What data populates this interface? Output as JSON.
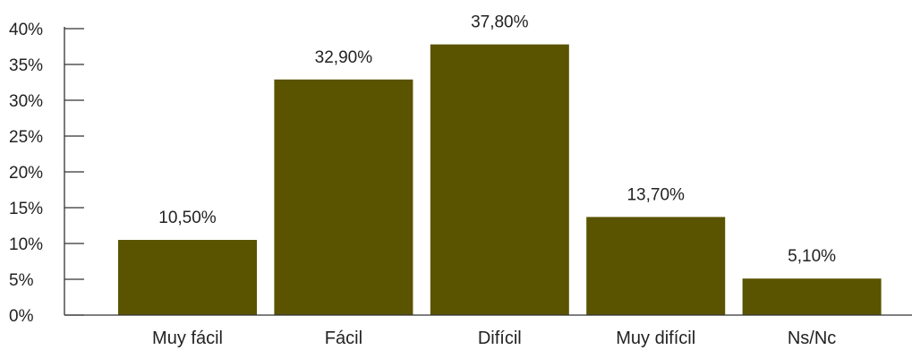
{
  "chart_data": {
    "type": "bar",
    "title": "",
    "xlabel": "",
    "ylabel": "",
    "categories": [
      "Muy fácil",
      "Fácil",
      "Difícil",
      "Muy difícil",
      "Ns/Nc"
    ],
    "values": [
      10.5,
      32.9,
      37.8,
      13.7,
      5.1
    ],
    "data_labels": [
      "10,50%",
      "32,90%",
      "37,80%",
      "13,70%",
      "5,10%"
    ],
    "ylim": [
      0,
      40
    ],
    "yticks": [
      0,
      5,
      10,
      15,
      20,
      25,
      30,
      35,
      40
    ],
    "ytick_labels": [
      "0%",
      "5%",
      "10%",
      "15%",
      "20%",
      "25%",
      "30%",
      "35%",
      "40%"
    ],
    "grid": false,
    "legend": "none",
    "bar_color": "#5a5300"
  }
}
